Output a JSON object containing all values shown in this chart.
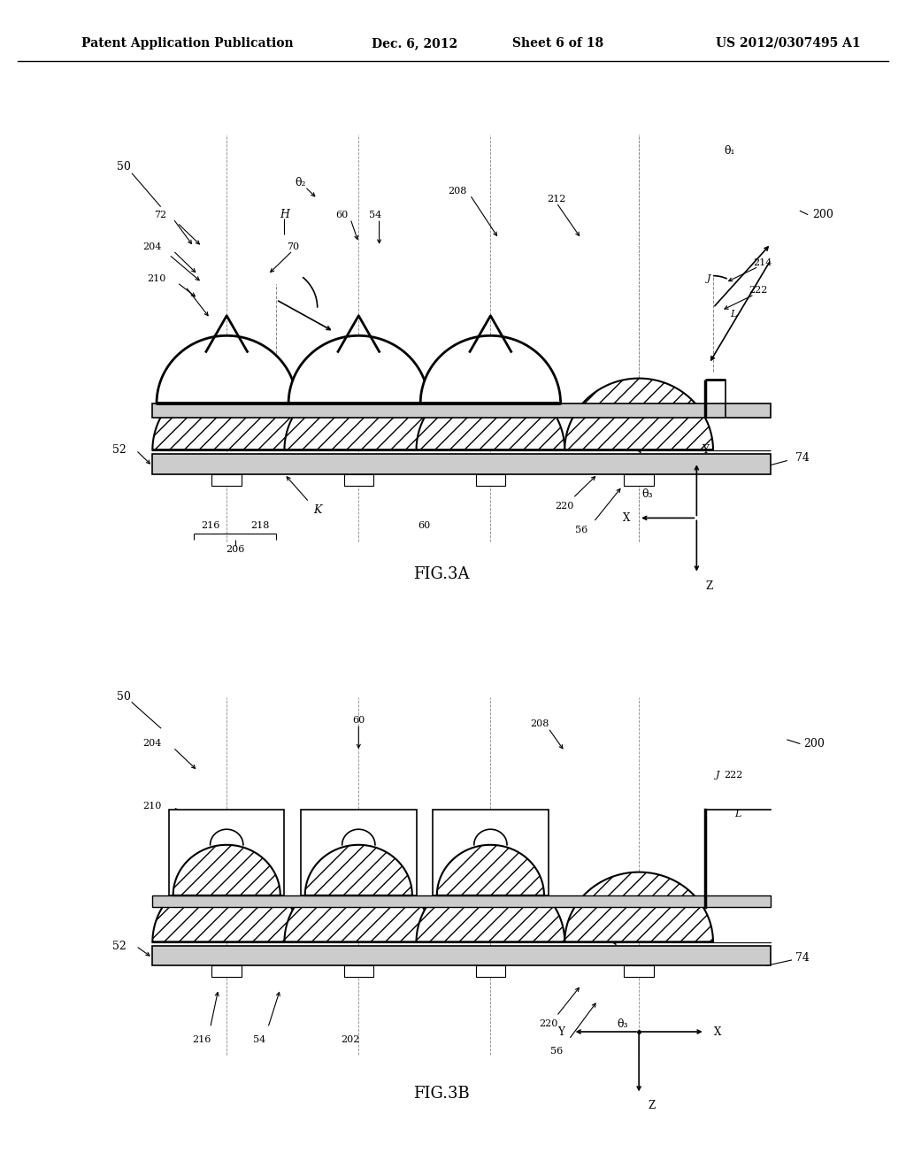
{
  "bg_color": "#ffffff",
  "fig_width": 10.24,
  "fig_height": 13.2,
  "header_text": "Patent Application Publication",
  "header_date": "Dec. 6, 2012",
  "header_sheet": "Sheet 6 of 18",
  "header_patent": "US 2012/0307495 A1",
  "fig3a_label": "FIG.3A",
  "fig3b_label": "FIG.3B"
}
